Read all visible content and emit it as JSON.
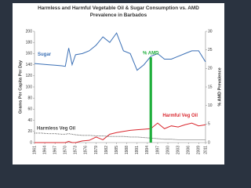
{
  "chart_data": {
    "type": "line",
    "title": "Harmless and Harmful Vegetable Oil & Sugar Consumption vs. AMD Prevalence in Barbados",
    "y_label": "Grams Per Capita Per Day",
    "y2_label": "% AMD Prevalence",
    "x": [
      1961,
      1963,
      1965,
      1967,
      1969,
      1970,
      1971,
      1972,
      1973,
      1975,
      1977,
      1979,
      1981,
      1983,
      1985,
      1987,
      1989,
      1991,
      1993,
      1995,
      1997,
      1999,
      2001,
      2003,
      2005,
      2007,
      2009,
      2011
    ],
    "xlim": [
      1961,
      2011
    ],
    "xticks": [
      1961,
      1964,
      1967,
      1970,
      1973,
      1976,
      1979,
      1982,
      1985,
      1988,
      1991,
      1994,
      1997,
      2000,
      2003,
      2006,
      2009,
      2011
    ],
    "ylim": [
      0,
      200
    ],
    "yticks": [
      0,
      20,
      40,
      60,
      80,
      100,
      120,
      140,
      160,
      180,
      200
    ],
    "y2lim": [
      0,
      30
    ],
    "y2ticks": [
      0,
      5,
      10,
      15,
      20,
      25,
      30
    ],
    "series": [
      {
        "name": "Sugar",
        "color": "#3a6fb5",
        "style": "solid",
        "values": [
          142,
          141,
          140,
          139,
          138,
          137,
          170,
          140,
          158,
          160,
          165,
          175,
          190,
          180,
          197,
          165,
          160,
          130,
          140,
          155,
          160,
          150,
          150,
          155,
          160,
          165,
          165,
          145
        ]
      },
      {
        "name": "Harmful Veg Oil",
        "color": "#d9272e",
        "style": "solid",
        "values": [
          0,
          0,
          0,
          0,
          0,
          0,
          2,
          0,
          0,
          3,
          4,
          10,
          5,
          15,
          18,
          20,
          22,
          23,
          24,
          25,
          35,
          25,
          30,
          28,
          32,
          35,
          30,
          32
        ]
      },
      {
        "name": "Harmless Veg Oil",
        "color": "#444444",
        "style": "dotted",
        "values": [
          17,
          17,
          16,
          16,
          15,
          15,
          16,
          15,
          14,
          13,
          13,
          12,
          12,
          11,
          11,
          11,
          10,
          10,
          9,
          8,
          7,
          6,
          6,
          5,
          5,
          5,
          5,
          5
        ]
      },
      {
        "name": "% AMD",
        "color": "#1fae3c",
        "style": "bar",
        "axis": "y2",
        "x": [
          1995,
          1995
        ],
        "values": [
          0,
          23
        ]
      }
    ]
  }
}
